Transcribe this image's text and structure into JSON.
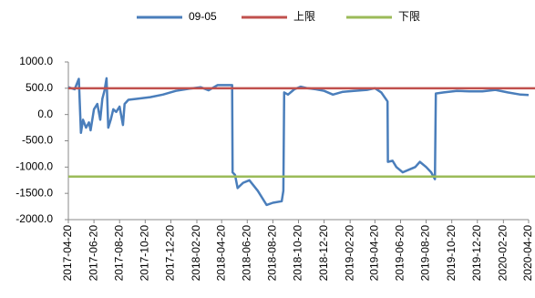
{
  "chart_data": {
    "type": "line",
    "x": [
      "2017-04-20",
      "2017-05-05",
      "2017-05-15",
      "2017-05-20",
      "2017-05-25",
      "2017-06-01",
      "2017-06-08",
      "2017-06-12",
      "2017-06-20",
      "2017-06-28",
      "2017-07-05",
      "2017-07-10",
      "2017-07-15",
      "2017-07-20",
      "2017-07-24",
      "2017-07-30",
      "2017-08-05",
      "2017-08-12",
      "2017-08-20",
      "2017-08-28",
      "2017-09-01",
      "2017-09-10",
      "2017-10-01",
      "2017-11-01",
      "2017-12-01",
      "2018-01-01",
      "2018-02-01",
      "2018-03-01",
      "2018-03-20",
      "2018-04-10",
      "2018-05-15",
      "2018-05-16",
      "2018-05-22",
      "2018-05-28",
      "2018-06-10",
      "2018-06-25",
      "2018-07-15",
      "2018-08-05",
      "2018-08-20",
      "2018-09-10",
      "2018-09-14",
      "2018-09-16",
      "2018-09-25",
      "2018-10-10",
      "2018-10-25",
      "2018-11-10",
      "2018-12-01",
      "2018-12-20",
      "2019-01-10",
      "2019-02-01",
      "2019-03-01",
      "2019-04-01",
      "2019-04-20",
      "2019-05-05",
      "2019-05-20",
      "2019-05-21",
      "2019-06-01",
      "2019-06-10",
      "2019-06-25",
      "2019-07-10",
      "2019-07-25",
      "2019-08-05",
      "2019-08-20",
      "2019-09-01",
      "2019-09-10",
      "2019-09-12",
      "2019-10-01",
      "2019-11-01",
      "2019-12-01",
      "2020-01-01",
      "2020-02-01",
      "2020-03-01",
      "2020-04-01",
      "2020-04-20"
    ],
    "series": [
      {
        "name": "09-05",
        "color": "#4a7ebb",
        "values": [
          520,
          480,
          680,
          -350,
          -100,
          -250,
          -150,
          -300,
          100,
          200,
          -100,
          300,
          450,
          690,
          -250,
          -100,
          100,
          50,
          150,
          -200,
          200,
          280,
          300,
          330,
          380,
          450,
          490,
          520,
          460,
          560,
          560,
          -1100,
          -1150,
          -1400,
          -1300,
          -1250,
          -1450,
          -1720,
          -1680,
          -1650,
          -1450,
          420,
          380,
          480,
          530,
          500,
          480,
          450,
          380,
          430,
          450,
          470,
          500,
          420,
          250,
          -900,
          -880,
          -1000,
          -1100,
          -1050,
          -1000,
          -900,
          -1000,
          -1100,
          -1230,
          400,
          420,
          450,
          440,
          440,
          470,
          420,
          380,
          370
        ]
      }
    ],
    "limits": [
      {
        "name": "上限",
        "color": "#c0504d",
        "value": 500
      },
      {
        "name": "下限",
        "color": "#9bbb59",
        "value": -1180
      }
    ],
    "xlim": [
      "2017-04-20",
      "2020-04-20"
    ],
    "xticks": [
      "2017-04-20",
      "2017-06-20",
      "2017-08-20",
      "2017-10-20",
      "2017-12-20",
      "2018-02-20",
      "2018-04-20",
      "2018-06-20",
      "2018-08-20",
      "2018-10-20",
      "2018-12-20",
      "2019-02-20",
      "2019-04-20",
      "2019-06-20",
      "2019-08-20",
      "2019-10-20",
      "2019-12-20",
      "2020-02-20",
      "2020-04-20"
    ],
    "ylim": [
      -2000,
      1000
    ],
    "yticks": [
      {
        "value": -2000,
        "label": "-2000.0"
      },
      {
        "value": -1500,
        "label": "-1500.0"
      },
      {
        "value": -1000,
        "label": "-1000.0"
      },
      {
        "value": -500,
        "label": "-500.0"
      },
      {
        "value": 0,
        "label": "0.0"
      },
      {
        "value": 500,
        "label": "500.0"
      },
      {
        "value": 1000,
        "label": "1000.0"
      }
    ]
  }
}
